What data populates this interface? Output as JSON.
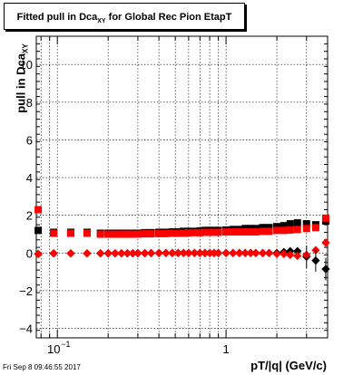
{
  "title": {
    "prefix": "Fitted pull in Dca",
    "sub": "XY",
    "suffix": "for Global Rec Pion EtapT"
  },
  "ylabel": {
    "text": "pull in Dca",
    "sub": "XY"
  },
  "xlabel": "pT/|q| (GeV/c)",
  "timestamp": "Fri Sep  8 09:46:55 2017",
  "chart_data": {
    "type": "scatter",
    "x_scale": "log",
    "xlim": [
      0.075,
      4.0
    ],
    "ylim": [
      -4.5,
      11.5
    ],
    "grid": true,
    "x_ticks": [
      {
        "value": 0.1,
        "label": "10",
        "exp": "−1"
      },
      {
        "value": 1,
        "label": "1"
      }
    ],
    "y_ticks": [
      -4,
      -2,
      0,
      2,
      4,
      6,
      8,
      10
    ],
    "x": [
      0.077,
      0.095,
      0.12,
      0.15,
      0.18,
      0.2,
      0.22,
      0.24,
      0.26,
      0.28,
      0.3,
      0.33,
      0.36,
      0.4,
      0.44,
      0.48,
      0.52,
      0.56,
      0.6,
      0.65,
      0.7,
      0.75,
      0.8,
      0.85,
      0.9,
      1.0,
      1.1,
      1.2,
      1.3,
      1.4,
      1.5,
      1.65,
      1.8,
      2.0,
      2.2,
      2.4,
      2.65,
      3.0,
      3.4,
      3.9
    ],
    "series": [
      {
        "name": "",
        "color": "#000000",
        "mean": [
          1.2,
          1.1,
          1.1,
          1.1,
          1.05,
          1.05,
          1.05,
          1.05,
          1.05,
          1.05,
          1.05,
          1.08,
          1.08,
          1.1,
          1.1,
          1.12,
          1.12,
          1.15,
          1.15,
          1.15,
          1.17,
          1.2,
          1.2,
          1.2,
          1.2,
          1.22,
          1.25,
          1.25,
          1.3,
          1.3,
          1.3,
          1.35,
          1.35,
          1.4,
          1.45,
          1.55,
          1.6,
          1.55,
          1.5,
          1.7
        ],
        "offset": [
          -0.05,
          -0.02,
          -0.02,
          -0.02,
          -0.02,
          -0.02,
          -0.02,
          -0.02,
          -0.02,
          -0.02,
          -0.01,
          -0.01,
          -0.01,
          0.0,
          0.0,
          0.0,
          0.0,
          0.0,
          0.0,
          0.0,
          0.0,
          0.0,
          0.0,
          0.0,
          0.0,
          0.0,
          0.0,
          0.0,
          0.0,
          0.0,
          0.0,
          0.0,
          0.0,
          0.0,
          0.05,
          0.1,
          0.1,
          -0.2,
          -0.4,
          -0.85
        ]
      },
      {
        "name": "",
        "color": "#ff0000",
        "mean": [
          2.3,
          1.05,
          1.05,
          1.05,
          1.0,
          1.0,
          1.0,
          1.0,
          1.0,
          1.0,
          1.0,
          1.02,
          1.02,
          1.03,
          1.03,
          1.05,
          1.05,
          1.05,
          1.07,
          1.08,
          1.08,
          1.1,
          1.1,
          1.1,
          1.1,
          1.12,
          1.12,
          1.12,
          1.12,
          1.12,
          1.12,
          1.15,
          1.15,
          1.2,
          1.2,
          1.22,
          1.25,
          1.3,
          1.35,
          1.85
        ],
        "offset": [
          -0.05,
          -0.02,
          -0.02,
          -0.02,
          -0.01,
          -0.01,
          -0.01,
          -0.01,
          -0.01,
          -0.01,
          -0.01,
          -0.01,
          0.0,
          0.0,
          0.0,
          0.0,
          0.0,
          0.0,
          0.0,
          0.0,
          0.0,
          0.0,
          0.0,
          0.0,
          0.0,
          0.0,
          0.0,
          0.0,
          0.0,
          0.0,
          0.0,
          0.0,
          0.0,
          -0.05,
          -0.05,
          -0.1,
          -0.15,
          -0.1,
          0.15,
          0.55
        ]
      }
    ]
  }
}
